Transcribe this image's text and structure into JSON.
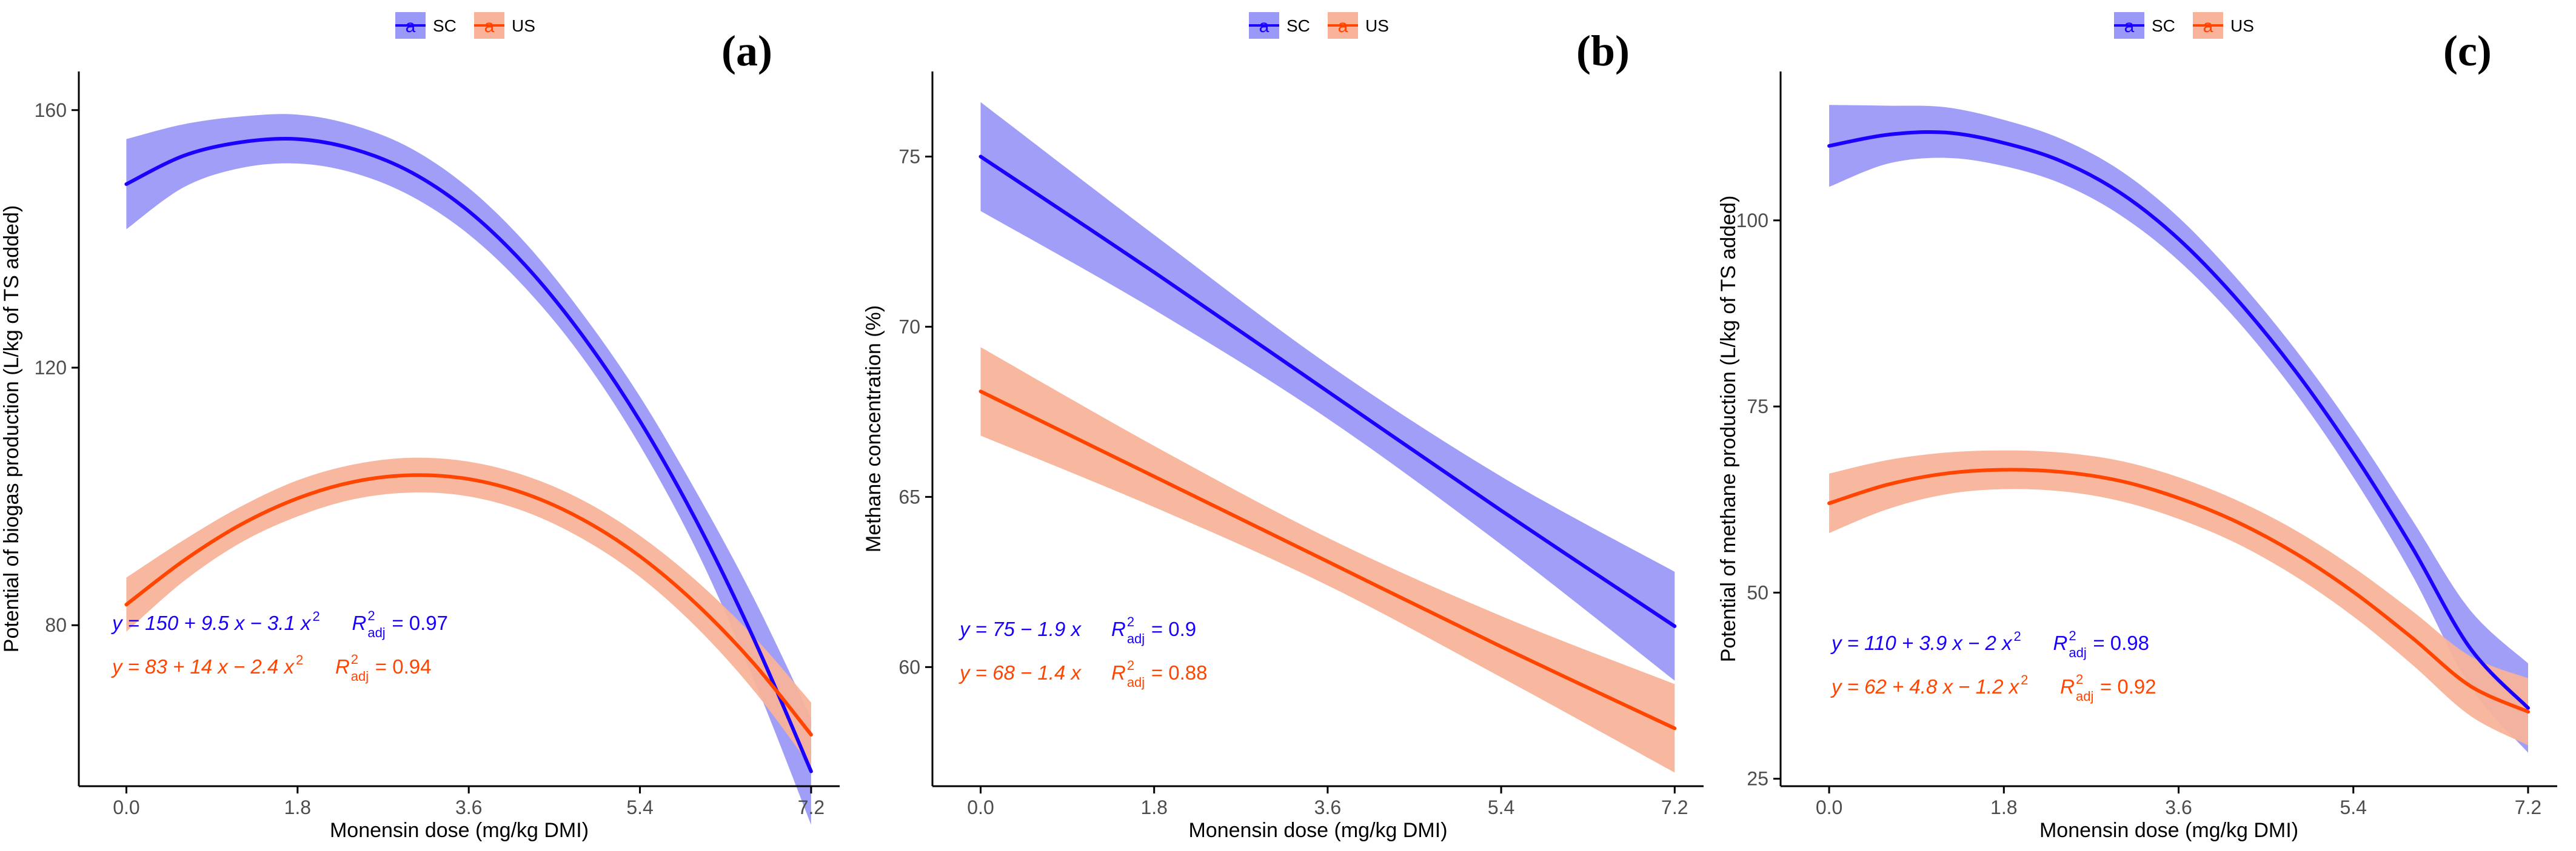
{
  "colors": {
    "sc_line": "#1a00ff",
    "sc_band": "#9b99f7",
    "us_line": "#ff4500",
    "us_band": "#f8b39a",
    "axis": "#000000",
    "tick_text": "#4d4d4d"
  },
  "legend": {
    "items": [
      {
        "key": "sc",
        "label": "SC",
        "glyph": "a"
      },
      {
        "key": "us",
        "label": "US",
        "glyph": "a"
      }
    ]
  },
  "chart_data": [
    {
      "type": "line",
      "panel_label": "(a)",
      "xlabel": "Monensin dose (mg/kg DMI)",
      "ylabel": "Potential of biogas production (L/kg of TS added)",
      "xlim": [
        -0.5,
        7.5
      ],
      "ylim": [
        55,
        166
      ],
      "xticks": [
        0.0,
        1.8,
        3.6,
        5.4,
        7.2
      ],
      "xtick_labels": [
        "0.0",
        "1.8",
        "3.6",
        "5.4",
        "7.2"
      ],
      "yticks": [
        80,
        120,
        160
      ],
      "ytick_labels": [
        "80",
        "120",
        "160"
      ],
      "series": [
        {
          "name": "SC",
          "key": "sc",
          "x": [
            0.0,
            0.6,
            1.2,
            1.8,
            2.4,
            3.0,
            3.6,
            4.2,
            4.8,
            5.4,
            6.0,
            6.6,
            7.2
          ],
          "values": [
            148.5,
            152.9,
            155.0,
            155.5,
            153.9,
            150.3,
            144.3,
            135.8,
            124.9,
            111.7,
            96.0,
            77.8,
            57.3
          ],
          "lower": [
            141.5,
            148.0,
            151.0,
            151.7,
            150.2,
            146.6,
            140.7,
            132.3,
            121.5,
            107.9,
            91.5,
            71.5,
            49.0
          ],
          "upper": [
            155.5,
            157.8,
            159.0,
            159.3,
            157.6,
            154.0,
            147.9,
            139.3,
            128.3,
            115.5,
            100.5,
            84.1,
            65.6
          ],
          "equation": "y = 150 + 9.5 x − 3.1 x",
          "r2": "= 0.97"
        },
        {
          "name": "US",
          "key": "us",
          "x": [
            0.0,
            0.6,
            1.2,
            1.8,
            2.4,
            3.0,
            3.6,
            4.2,
            4.8,
            5.4,
            6.0,
            6.6,
            7.2
          ],
          "values": [
            83.2,
            90.0,
            95.6,
            99.7,
            102.3,
            103.3,
            102.7,
            100.4,
            96.4,
            90.7,
            83.2,
            74.0,
            63.0
          ],
          "lower": [
            79.0,
            86.8,
            92.8,
            96.9,
            99.6,
            100.6,
            100.0,
            97.6,
            93.4,
            87.5,
            79.6,
            69.8,
            58.0
          ],
          "upper": [
            87.4,
            93.2,
            98.4,
            102.5,
            105.0,
            106.0,
            105.4,
            103.2,
            99.4,
            93.9,
            86.8,
            78.2,
            68.0
          ],
          "equation": "y = 83 + 14 x − 2.4 x",
          "r2": "= 0.94"
        }
      ]
    },
    {
      "type": "line",
      "panel_label": "(b)",
      "xlabel": "Monensin dose (mg/kg DMI)",
      "ylabel": "Methane concentration (%)",
      "xlim": [
        -0.5,
        7.5
      ],
      "ylim": [
        56.5,
        77.5
      ],
      "xticks": [
        0.0,
        1.8,
        3.6,
        5.4,
        7.2
      ],
      "xtick_labels": [
        "0.0",
        "1.8",
        "3.6",
        "5.4",
        "7.2"
      ],
      "yticks": [
        60,
        65,
        70,
        75
      ],
      "ytick_labels": [
        "60",
        "65",
        "70",
        "75"
      ],
      "series": [
        {
          "name": "SC",
          "key": "sc",
          "x": [
            0.0,
            1.8,
            3.6,
            5.4,
            7.2
          ],
          "values": [
            75.0,
            71.6,
            68.1,
            64.6,
            61.2
          ],
          "lower": [
            73.4,
            70.5,
            67.3,
            63.6,
            59.6
          ],
          "upper": [
            76.6,
            72.7,
            68.9,
            65.6,
            62.8
          ],
          "equation": "y = 75 − 1.9 x",
          "r2": "= 0.9"
        },
        {
          "name": "US",
          "key": "us",
          "x": [
            0.0,
            1.8,
            3.6,
            5.4,
            7.2
          ],
          "values": [
            68.1,
            65.6,
            63.1,
            60.6,
            58.2
          ],
          "lower": [
            66.8,
            64.7,
            62.4,
            59.7,
            56.9
          ],
          "upper": [
            69.4,
            66.5,
            63.8,
            61.5,
            59.5
          ],
          "equation": "y = 68 − 1.4 x",
          "r2": "= 0.88"
        }
      ]
    },
    {
      "type": "line",
      "panel_label": "(c)",
      "xlabel": "Monensin dose (mg/kg DMI)",
      "ylabel": "Potential of methane production (L/kg of TS added)",
      "xlim": [
        -0.5,
        7.5
      ],
      "ylim": [
        24,
        120
      ],
      "xticks": [
        0.0,
        1.8,
        3.6,
        5.4,
        7.2
      ],
      "xtick_labels": [
        "0.0",
        "1.8",
        "3.6",
        "5.4",
        "7.2"
      ],
      "yticks": [
        25,
        50,
        75,
        100
      ],
      "ytick_labels": [
        "25",
        "50",
        "75",
        "100"
      ],
      "series": [
        {
          "name": "SC",
          "key": "sc",
          "x": [
            0.0,
            0.6,
            1.2,
            1.8,
            2.4,
            3.0,
            3.6,
            4.2,
            4.8,
            5.4,
            6.0,
            6.6,
            7.2
          ],
          "values": [
            110.0,
            111.5,
            111.8,
            110.4,
            107.9,
            103.7,
            97.5,
            89.4,
            79.8,
            68.7,
            56.2,
            42.6,
            34.5
          ],
          "lower": [
            104.5,
            107.6,
            108.4,
            107.3,
            104.9,
            100.7,
            94.6,
            86.6,
            76.9,
            65.5,
            52.5,
            37.5,
            28.5
          ],
          "upper": [
            115.5,
            115.4,
            115.2,
            113.5,
            110.9,
            106.7,
            100.4,
            92.2,
            82.7,
            71.9,
            59.9,
            47.7,
            40.5
          ],
          "equation": "y = 110 + 3.9 x − 2 x",
          "r2": "= 0.98"
        },
        {
          "name": "US",
          "key": "us",
          "x": [
            0.0,
            0.6,
            1.2,
            1.8,
            2.4,
            3.0,
            3.6,
            4.2,
            4.8,
            5.4,
            6.0,
            6.6,
            7.2
          ],
          "values": [
            62.0,
            64.5,
            66.0,
            66.5,
            66.2,
            65.0,
            62.7,
            59.5,
            55.3,
            50.1,
            44.0,
            37.5,
            34.0
          ],
          "lower": [
            58.0,
            61.2,
            63.2,
            63.9,
            63.6,
            62.3,
            59.9,
            56.6,
            52.2,
            46.8,
            40.4,
            33.5,
            29.5
          ],
          "upper": [
            66.0,
            67.8,
            68.8,
            69.1,
            68.8,
            67.7,
            65.5,
            62.4,
            58.4,
            53.4,
            47.6,
            41.5,
            38.5
          ],
          "equation": "y = 62 + 4.8 x − 1.2 x",
          "r2": "= 0.92"
        }
      ]
    }
  ]
}
